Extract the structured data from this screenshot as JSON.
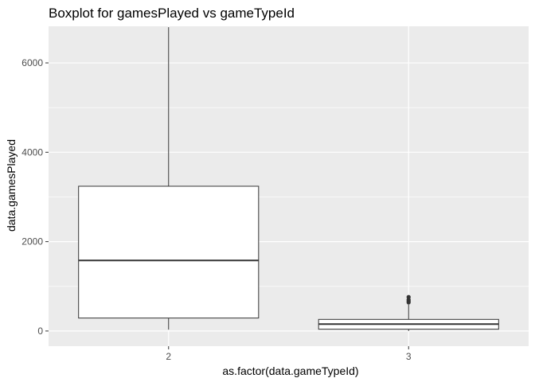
{
  "chart_data": {
    "type": "boxplot",
    "title": "Boxplot for gamesPlayed vs gameTypeId",
    "xlabel": "as.factor(data.gameTypeId)",
    "ylabel": "data.gamesPlayed",
    "categories": [
      "2",
      "3"
    ],
    "ylim": [
      -340,
      6820
    ],
    "yticks": [
      0,
      2000,
      4000,
      6000
    ],
    "grid": true,
    "boxes": [
      {
        "category": "2",
        "min": 30,
        "q1": 290,
        "median": 1580,
        "q3": 3240,
        "max": 6800,
        "outliers": []
      },
      {
        "category": "3",
        "min": 0,
        "q1": 40,
        "median": 155,
        "q3": 260,
        "max": 590,
        "outliers": [
          640,
          670,
          700,
          760
        ]
      }
    ],
    "colors": {
      "panel": "#ebebeb",
      "grid": "#ffffff",
      "box_fill": "#ffffff",
      "stroke": "#333333",
      "outlier": "#333333"
    }
  }
}
